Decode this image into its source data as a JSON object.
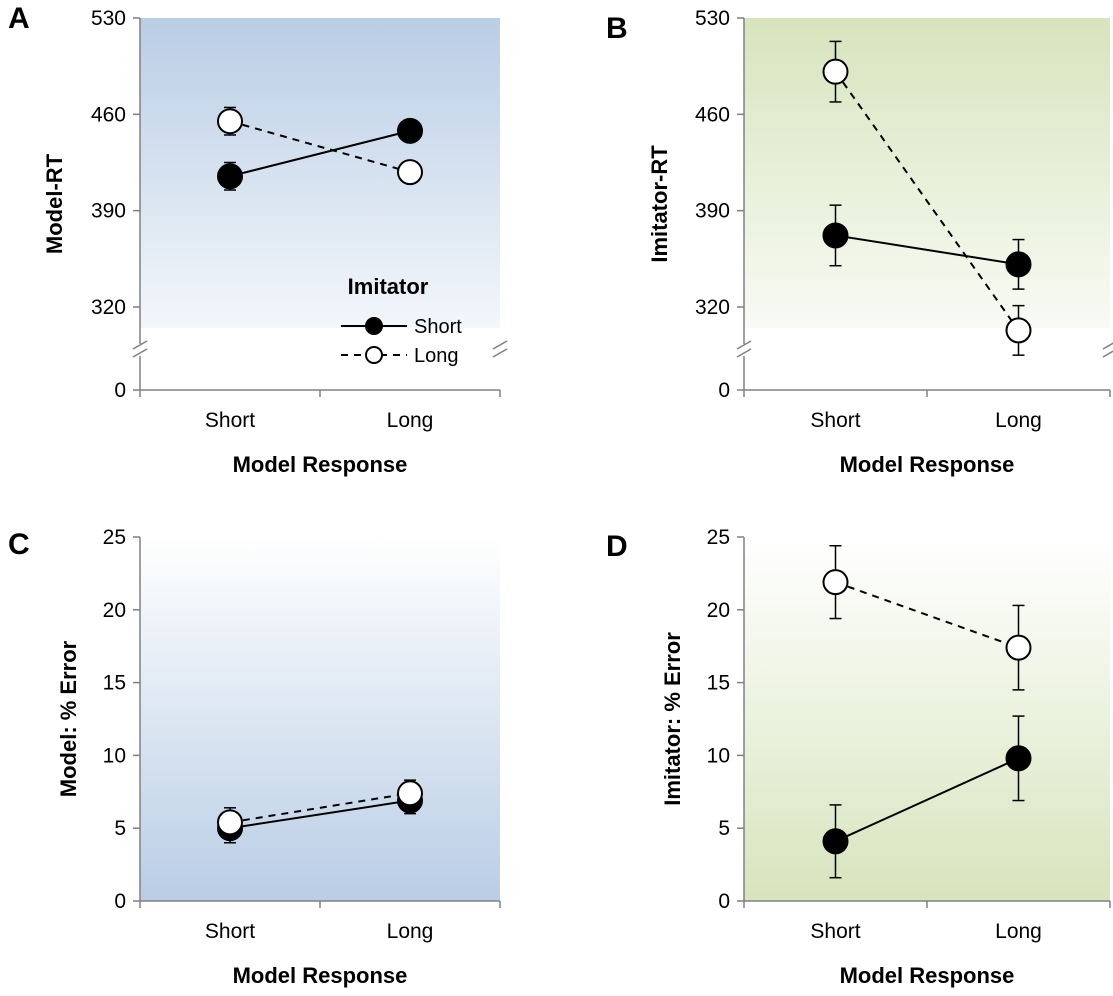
{
  "legend": {
    "title": "Imitator",
    "items": [
      "Short",
      "Long"
    ]
  },
  "colors": {
    "blue_panel": "#b9cde5",
    "green_panel": "#d7e4bd",
    "filled_marker": "#000000",
    "open_marker": "#ffffff"
  },
  "chart_data": [
    {
      "panel": "A",
      "type": "line",
      "categories": [
        "Short",
        "Long"
      ],
      "xlabel": "Model Response",
      "ylabel": "Model-RT",
      "yticks": [
        "0",
        "320",
        "390",
        "460",
        "530"
      ],
      "ylim": [
        320,
        530
      ],
      "axis_break": true,
      "background": "blue",
      "gradient": "top",
      "legend": true,
      "series": [
        {
          "name": "Short",
          "marker": "filled",
          "dash": false,
          "values": [
            415,
            448
          ],
          "err": [
            10,
            6
          ]
        },
        {
          "name": "Long",
          "marker": "open",
          "dash": true,
          "values": [
            455,
            418
          ],
          "err": [
            10,
            6
          ]
        }
      ]
    },
    {
      "panel": "B",
      "type": "line",
      "categories": [
        "Short",
        "Long"
      ],
      "xlabel": "Model Response",
      "ylabel": "Imitator-RT",
      "yticks": [
        "0",
        "320",
        "390",
        "460",
        "530"
      ],
      "ylim": [
        320,
        530
      ],
      "axis_break": true,
      "background": "green",
      "gradient": "top",
      "legend": false,
      "series": [
        {
          "name": "Short",
          "marker": "filled",
          "dash": false,
          "values": [
            372,
            351
          ],
          "err": [
            22,
            18
          ]
        },
        {
          "name": "Long",
          "marker": "open",
          "dash": true,
          "values": [
            491,
            303
          ],
          "err": [
            22,
            18
          ]
        }
      ]
    },
    {
      "panel": "C",
      "type": "line",
      "categories": [
        "Short",
        "Long"
      ],
      "xlabel": "Model Response",
      "ylabel": "Model: % Error",
      "yticks": [
        "0",
        "5",
        "10",
        "15",
        "20",
        "25"
      ],
      "ylim": [
        0,
        25
      ],
      "axis_break": false,
      "background": "blue",
      "gradient": "bottom",
      "legend": false,
      "series": [
        {
          "name": "Short",
          "marker": "filled",
          "dash": false,
          "values": [
            5.0,
            6.9
          ],
          "err": [
            1.0,
            0.9
          ]
        },
        {
          "name": "Long",
          "marker": "open",
          "dash": true,
          "values": [
            5.4,
            7.4
          ],
          "err": [
            1.0,
            0.9
          ]
        }
      ]
    },
    {
      "panel": "D",
      "type": "line",
      "categories": [
        "Short",
        "Long"
      ],
      "xlabel": "Model Response",
      "ylabel": "Imitator: % Error",
      "yticks": [
        "0",
        "5",
        "10",
        "15",
        "20",
        "25"
      ],
      "ylim": [
        0,
        25
      ],
      "axis_break": false,
      "background": "green",
      "gradient": "bottom",
      "legend": false,
      "series": [
        {
          "name": "Short",
          "marker": "filled",
          "dash": false,
          "values": [
            4.1,
            9.8
          ],
          "err": [
            2.5,
            2.9
          ]
        },
        {
          "name": "Long",
          "marker": "open",
          "dash": true,
          "values": [
            21.9,
            17.4
          ],
          "err": [
            2.5,
            2.9
          ]
        }
      ]
    }
  ]
}
